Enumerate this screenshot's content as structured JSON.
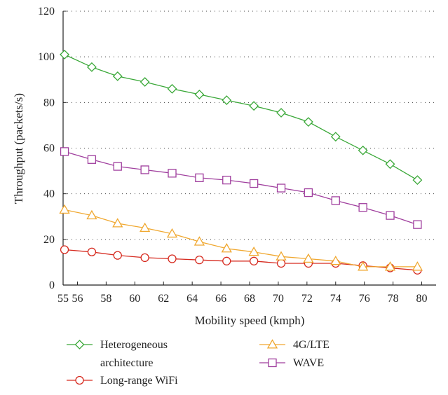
{
  "chart_data": {
    "type": "line",
    "title": "",
    "xlabel": "Mobility speed (kmph)",
    "ylabel": "Throughput (packets/s)",
    "xlim": [
      55,
      81
    ],
    "ylim": [
      0,
      120
    ],
    "xticks": [
      55,
      56,
      58,
      60,
      62,
      64,
      66,
      68,
      70,
      72,
      74,
      76,
      78,
      80
    ],
    "yticks": [
      0,
      20,
      40,
      60,
      80,
      100,
      120
    ],
    "grid": "horizontal-dotted",
    "legend_position": "bottom",
    "x": [
      55.1,
      57.0,
      58.8,
      60.7,
      62.6,
      64.5,
      66.4,
      68.3,
      70.2,
      72.1,
      74.0,
      75.9,
      77.8,
      79.7
    ],
    "series": [
      {
        "name": "Heterogeneous architecture",
        "legend_lines": [
          "Heterogeneous",
          "architecture"
        ],
        "color": "#3aa838",
        "marker": "diamond",
        "values": [
          101,
          95.5,
          91.5,
          89,
          86,
          83.5,
          81,
          78.5,
          75.5,
          71.5,
          65,
          59,
          53,
          46
        ]
      },
      {
        "name": "Long-range WiFi",
        "legend_lines": [
          "Long-range WiFi"
        ],
        "color": "#d62a1f",
        "marker": "circle",
        "values": [
          15.5,
          14.5,
          13,
          12,
          11.5,
          11,
          10.5,
          10.5,
          9.5,
          9.5,
          9.5,
          8.5,
          7.5,
          6.5
        ]
      },
      {
        "name": "4G/LTE",
        "legend_lines": [
          "4G/LTE"
        ],
        "color": "#f0a830",
        "marker": "triangle",
        "values": [
          33,
          30.5,
          27,
          25,
          22.5,
          19,
          16,
          14.5,
          12.5,
          11.5,
          10.5,
          8,
          8,
          8
        ]
      },
      {
        "name": "WAVE",
        "legend_lines": [
          "WAVE"
        ],
        "color": "#a03f9e",
        "marker": "square",
        "values": [
          58.5,
          55,
          52,
          50.5,
          49,
          47,
          46,
          44.5,
          42.5,
          40.5,
          37,
          34,
          30.5,
          26.5
        ]
      }
    ]
  }
}
